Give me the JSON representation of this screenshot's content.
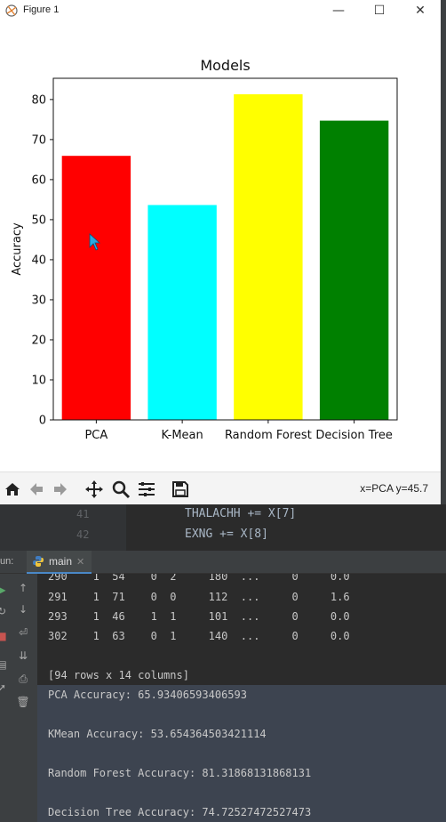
{
  "window": {
    "title": "Figure 1",
    "minimize_glyph": "—",
    "maximize_glyph": "☐",
    "close_glyph": "✕"
  },
  "chart_data": {
    "type": "bar",
    "title": "Models",
    "xlabel": "",
    "ylabel": "Accuracy",
    "categories": [
      "PCA",
      "K-Mean",
      "Random Forest",
      "Decision Tree"
    ],
    "values": [
      65.93406593406593,
      53.654364503421114,
      81.31868131868131,
      74.72527472527473
    ],
    "colors": [
      "#ff0000",
      "#00ffff",
      "#ffff00",
      "#008000"
    ],
    "ylim": [
      0,
      85.3
    ],
    "yticks": [
      0,
      10,
      20,
      30,
      40,
      50,
      60,
      70,
      80
    ],
    "grid": false
  },
  "toolbar": {
    "coords": "x=PCA y=45.7",
    "icons": [
      "home-icon",
      "back-arrow-icon",
      "forward-arrow-icon",
      "pan-icon",
      "zoom-icon",
      "configure-subplots-icon",
      "save-icon"
    ]
  },
  "editor": {
    "lines": [
      {
        "num": "41",
        "code": "THALACHH += X[7]"
      },
      {
        "num": "42",
        "code": "EXNG += X[8]"
      }
    ]
  },
  "run": {
    "label": "un:",
    "tab": "main"
  },
  "console": {
    "rows": [
      "290    1  54    0  2     180  ...     0     0.0",
      "291    1  71    0  0     112  ...     0     1.6",
      "293    1  46    1  1     101  ...     0     0.0",
      "302    1  63    0  1     140  ...     0     0.0"
    ],
    "summary": "[94 rows x 14 columns]",
    "accuracies": [
      "PCA Accuracy: 65.93406593406593",
      "KMean Accuracy: 53.654364503421114",
      "Random Forest Accuracy: 81.31868131868131",
      "Decision Tree Accuracy: 74.72527472527473"
    ]
  }
}
